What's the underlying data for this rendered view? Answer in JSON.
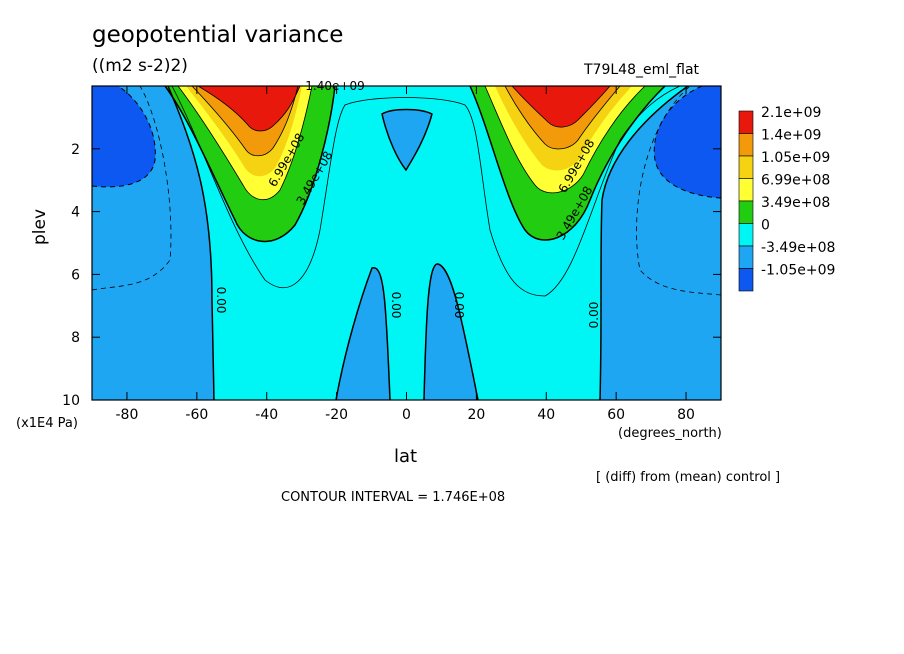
{
  "chart_data": {
    "type": "heatmap",
    "title": "geopotential variance",
    "units": "((m2 s-2)2)",
    "run_label": "T79L48_eml_flat",
    "xlabel": "lat",
    "ylabel": "plev",
    "x_unit": "(degrees_north)",
    "y_unit": "(x1E4 Pa)",
    "xlim": [
      -90,
      90
    ],
    "ylim": [
      10,
      0
    ],
    "x_ticks": [
      -80,
      -60,
      -40,
      -20,
      0,
      20,
      40,
      60,
      80
    ],
    "y_ticks": [
      2,
      4,
      6,
      8,
      10
    ],
    "note": "[ (diff) from (mean) control ]",
    "contour_interval": "CONTOUR INTERVAL = 1.746E+08",
    "colorbar": [
      {
        "label": "2.1e+09",
        "color": "#e8190c"
      },
      {
        "label": "1.4e+09",
        "color": "#f29a0a"
      },
      {
        "label": "1.05e+09",
        "color": "#f5d312"
      },
      {
        "label": "6.99e+08",
        "color": "#ffff33"
      },
      {
        "label": "3.49e+08",
        "color": "#22cc11"
      },
      {
        "label": "0",
        "color": "#00f5f5"
      },
      {
        "label": "-3.49e+08",
        "color": "#1fa6f2"
      },
      {
        "label": "-1.05e+09",
        "color": "#0d58f0"
      }
    ],
    "contour_labels": [
      "0.00",
      "0.00",
      "0.00",
      "0.00",
      "1.40e+09",
      "6.99e+08",
      "3.49e+08",
      "6.99e+08",
      "3.49e+08"
    ]
  }
}
